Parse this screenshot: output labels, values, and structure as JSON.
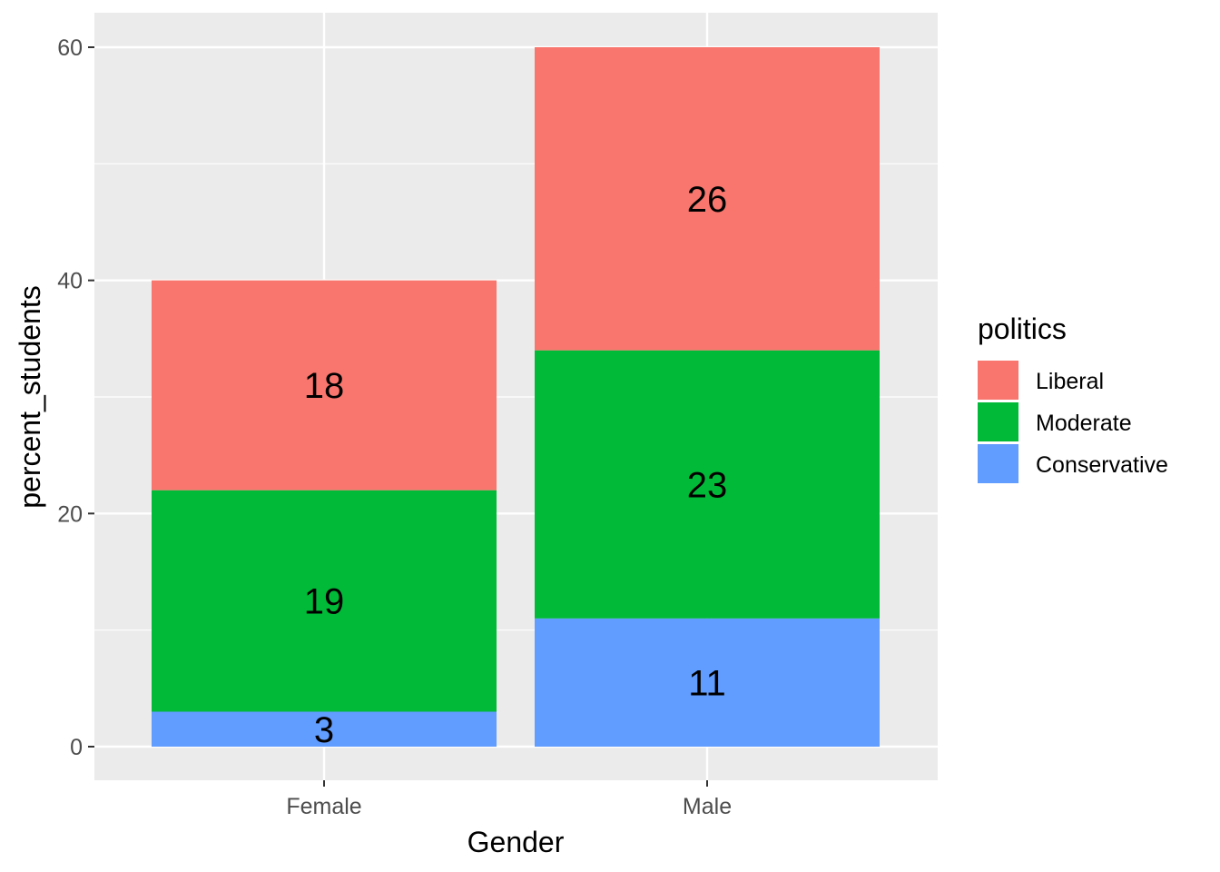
{
  "chart_data": {
    "type": "bar",
    "stacked": true,
    "categories": [
      "Female",
      "Male"
    ],
    "series": [
      {
        "name": "Conservative",
        "color": "#619CFF",
        "values": [
          3,
          11
        ]
      },
      {
        "name": "Moderate",
        "color": "#00BA38",
        "values": [
          19,
          23
        ]
      },
      {
        "name": "Liberal",
        "color": "#F8766D",
        "values": [
          18,
          26
        ]
      }
    ],
    "xlabel": "Gender",
    "ylabel": "percent_students",
    "ylim": [
      0,
      60
    ],
    "yticks": [
      0,
      20,
      40,
      60
    ],
    "grid": true,
    "legend": {
      "title": "politics",
      "position": "right",
      "items": [
        "Liberal",
        "Moderate",
        "Conservative"
      ]
    },
    "panel_color": "#EBEBEB",
    "grid_color": "#FFFFFF"
  }
}
